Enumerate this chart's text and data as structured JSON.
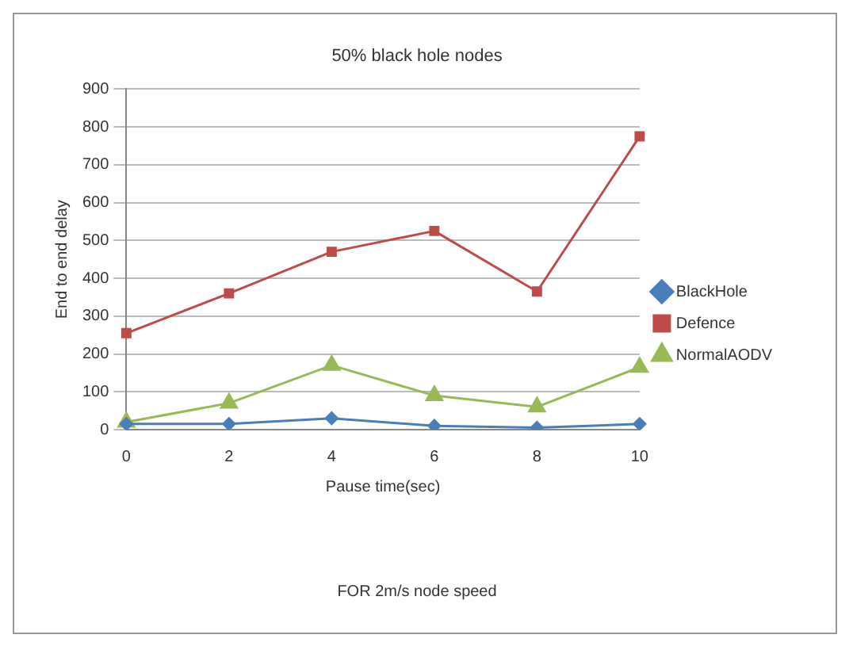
{
  "chart_data": {
    "type": "line",
    "title": "50% black hole nodes",
    "xlabel": "Pause time(sec)",
    "ylabel": "End to end delay",
    "categories": [
      "0",
      "2",
      "4",
      "6",
      "8",
      "10"
    ],
    "series": [
      {
        "name": "BlackHole",
        "color": "#4a7ebb",
        "marker": "diamond",
        "values": [
          15,
          15,
          30,
          10,
          5,
          15
        ]
      },
      {
        "name": "Defence",
        "color": "#be4b48",
        "marker": "square",
        "values": [
          255,
          360,
          470,
          525,
          365,
          775
        ]
      },
      {
        "name": "NormalAODV",
        "color": "#98b954",
        "marker": "triangle",
        "values": [
          20,
          70,
          170,
          90,
          60,
          165
        ]
      }
    ],
    "ylim": [
      0,
      900
    ],
    "yticks": [
      0,
      100,
      200,
      300,
      400,
      500,
      600,
      700,
      800,
      900
    ],
    "grid": "y",
    "legend": "right",
    "annotations": [
      "FOR 2m/s node speed"
    ]
  }
}
